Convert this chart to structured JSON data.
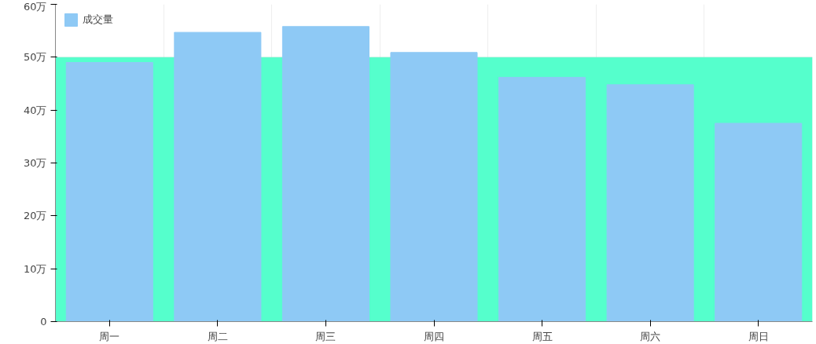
{
  "chart_data": {
    "type": "bar",
    "categories": [
      "周一",
      "周二",
      "周三",
      "周四",
      "周五",
      "周六",
      "周日"
    ],
    "series": [
      {
        "name": "成交量",
        "color": "#8ec9f5",
        "values": [
          49,
          54.7,
          55.8,
          50.9,
          46.2,
          44.8,
          37.5
        ]
      }
    ],
    "ylim": [
      0,
      60
    ],
    "yticks": [
      0,
      {
        "value": 10,
        "label": "10万"
      },
      {
        "value": 20,
        "label": "20万"
      },
      {
        "value": 30,
        "label": "30万"
      },
      {
        "value": 40,
        "label": "40万"
      },
      {
        "value": 50,
        "label": "50万"
      },
      {
        "value": 60,
        "label": "60万"
      }
    ],
    "bands": [
      {
        "axis": "y",
        "from": 0,
        "to": 50,
        "color": "#55ffcc"
      }
    ],
    "grid": "x",
    "legend": "top left"
  }
}
